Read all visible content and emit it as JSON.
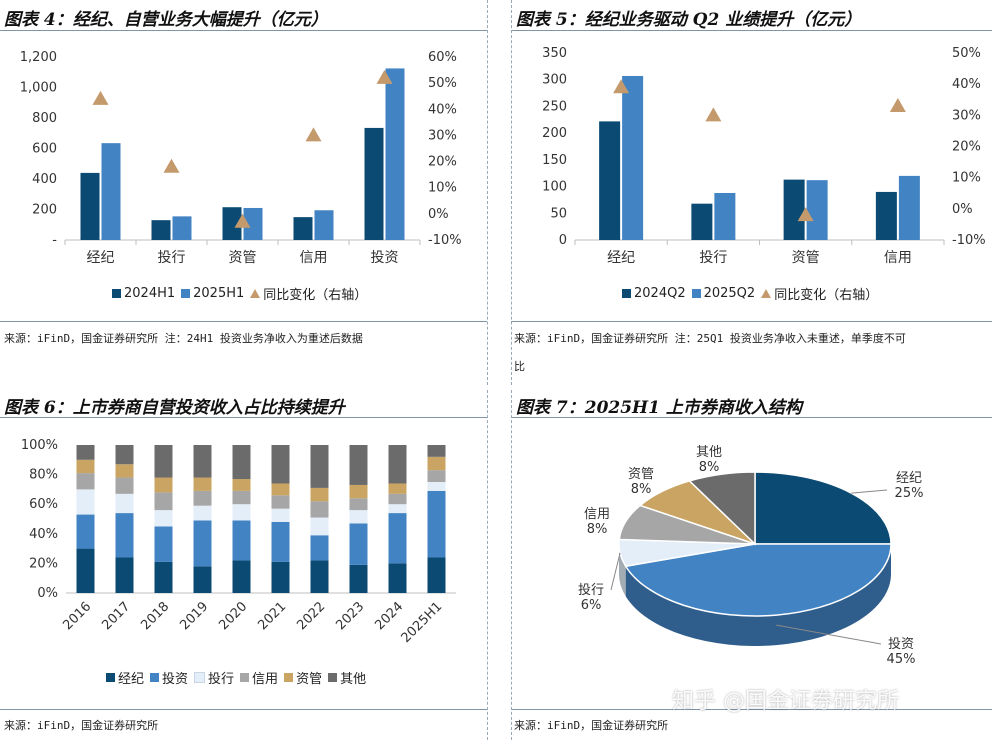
{
  "panels": {
    "p4": {
      "title": "图表 4：经纪、自营业务大幅提升（亿元）",
      "source": "来源：iFinD，国金证券研究所 注：24H1 投资业务净收入为重述后数据"
    },
    "p5": {
      "title": "图表 5：经纪业务驱动 Q2 业绩提升（亿元）",
      "source": "来源：iFinD，国金证券研究所 注：25Q1 投资业务净收入未重述，单季度不可",
      "source2": "比"
    },
    "p6": {
      "title": "图表 6：上市券商自营投资收入占比持续提升",
      "source": "来源：iFinD，国金证券研究所"
    },
    "p7": {
      "title": "图表 7：2025H1 上市券商收入结构",
      "source": "来源：iFinD，国金证券研究所"
    }
  },
  "watermark": "知乎 @国金证券研究所",
  "colors": {
    "dark": "#0b4a73",
    "mid": "#4283c3",
    "light": "#e3eef8",
    "gray": "#a6a6a6",
    "tan": "#c9a462",
    "charcoal": "#6b6b6b",
    "tri": "#c49a6c"
  },
  "chart_data": [
    {
      "id": "p4",
      "type": "bar",
      "categories": [
        "经纪",
        "投行",
        "资管",
        "信用",
        "投资"
      ],
      "series": [
        {
          "name": "2024H1",
          "values": [
            440,
            130,
            215,
            150,
            735
          ]
        },
        {
          "name": "2025H1",
          "values": [
            635,
            155,
            210,
            195,
            1125
          ]
        },
        {
          "name": "同比变化（右轴）",
          "axis": "right",
          "type": "scatter",
          "values": [
            0.44,
            0.18,
            -0.03,
            0.3,
            0.52
          ]
        }
      ],
      "yticks": [
        "-",
        "200",
        "400",
        "600",
        "800",
        "1,000",
        "1,200"
      ],
      "ylim": [
        0,
        1200
      ],
      "y2ticks": [
        "-10%",
        "0%",
        "10%",
        "20%",
        "30%",
        "40%",
        "50%",
        "60%"
      ],
      "y2lim": [
        -0.1,
        0.6
      ]
    },
    {
      "id": "p5",
      "type": "bar",
      "categories": [
        "经纪",
        "投行",
        "资管",
        "信用"
      ],
      "series": [
        {
          "name": "2024Q2",
          "values": [
            222,
            68,
            113,
            90
          ]
        },
        {
          "name": "2025Q2",
          "values": [
            307,
            88,
            112,
            120
          ]
        },
        {
          "name": "同比变化（右轴）",
          "axis": "right",
          "type": "scatter",
          "values": [
            0.39,
            0.3,
            -0.02,
            0.33
          ]
        }
      ],
      "yticks": [
        "0",
        "50",
        "100",
        "150",
        "200",
        "250",
        "300",
        "350"
      ],
      "ylim": [
        0,
        350
      ],
      "y2ticks": [
        "-10%",
        "0%",
        "10%",
        "20%",
        "30%",
        "40%",
        "50%"
      ],
      "y2lim": [
        -0.1,
        0.5
      ]
    },
    {
      "id": "p6",
      "type": "bar",
      "stacked": true,
      "categories": [
        "2016",
        "2017",
        "2018",
        "2019",
        "2020",
        "2021",
        "2022",
        "2023",
        "2024",
        "2025H1"
      ],
      "series": [
        {
          "name": "经纪",
          "values": [
            0.3,
            0.24,
            0.21,
            0.18,
            0.22,
            0.21,
            0.22,
            0.19,
            0.2,
            0.24
          ]
        },
        {
          "name": "投资",
          "values": [
            0.23,
            0.3,
            0.24,
            0.31,
            0.27,
            0.27,
            0.17,
            0.28,
            0.34,
            0.45
          ]
        },
        {
          "name": "投行",
          "values": [
            0.17,
            0.13,
            0.11,
            0.1,
            0.11,
            0.09,
            0.12,
            0.09,
            0.06,
            0.06
          ]
        },
        {
          "name": "信用",
          "values": [
            0.11,
            0.11,
            0.12,
            0.1,
            0.09,
            0.09,
            0.11,
            0.08,
            0.07,
            0.08
          ]
        },
        {
          "name": "资管",
          "values": [
            0.09,
            0.09,
            0.1,
            0.09,
            0.08,
            0.08,
            0.09,
            0.09,
            0.07,
            0.09
          ]
        },
        {
          "name": "其他",
          "values": [
            0.1,
            0.13,
            0.22,
            0.22,
            0.23,
            0.26,
            0.29,
            0.27,
            0.26,
            0.08
          ]
        }
      ],
      "yticks": [
        "0%",
        "20%",
        "40%",
        "60%",
        "80%",
        "100%"
      ],
      "ylim": [
        0,
        1
      ]
    },
    {
      "id": "p7",
      "type": "pie",
      "slices": [
        {
          "name": "经纪",
          "label": "25%",
          "value": 25
        },
        {
          "name": "投资",
          "label": "45%",
          "value": 45
        },
        {
          "name": "投行",
          "label": "6%",
          "value": 6
        },
        {
          "name": "信用",
          "label": "8%",
          "value": 8
        },
        {
          "name": "资管",
          "label": "8%",
          "value": 8
        },
        {
          "name": "其他",
          "label": "8%",
          "value": 8
        }
      ]
    }
  ]
}
